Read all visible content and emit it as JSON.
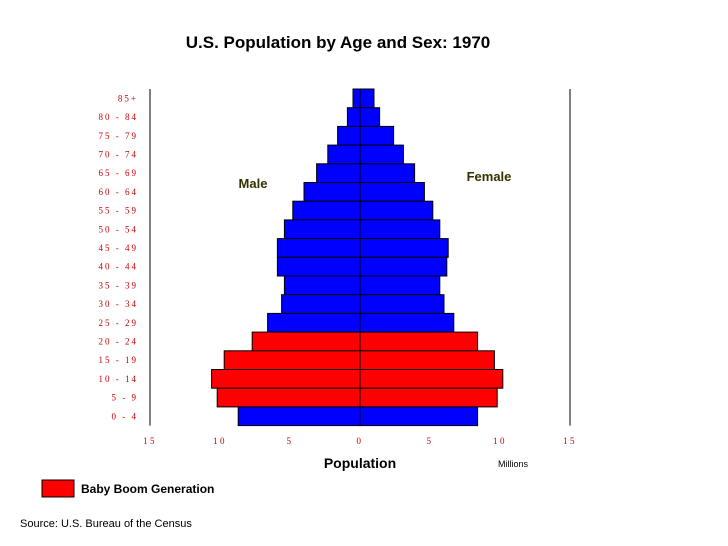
{
  "chart_data": {
    "type": "bar",
    "orientation": "horizontal",
    "title": "U.S. Population by Age and Sex: 1970",
    "xlabel": "Population",
    "units": "Millions",
    "xlim": [
      -15,
      15
    ],
    "x_ticks": [
      15,
      10,
      5,
      0,
      5,
      10,
      15
    ],
    "grid": false,
    "categories": [
      "0 - 4",
      "5 - 9",
      "10 - 14",
      "15 - 19",
      "20 - 24",
      "25 - 29",
      "30 - 34",
      "35 - 39",
      "40 - 44",
      "45 - 49",
      "50 - 54",
      "55 - 59",
      "60 - 64",
      "65 - 69",
      "70 - 74",
      "75 - 79",
      "80 - 84",
      "85+"
    ],
    "series": [
      {
        "name": "Male",
        "values": [
          8.7,
          10.2,
          10.6,
          9.7,
          7.7,
          6.6,
          5.6,
          5.4,
          5.9,
          5.9,
          5.4,
          4.8,
          4.0,
          3.1,
          2.3,
          1.6,
          0.9,
          0.5
        ]
      },
      {
        "name": "Female",
        "values": [
          8.4,
          9.8,
          10.2,
          9.6,
          8.4,
          6.7,
          6.0,
          5.7,
          6.2,
          6.3,
          5.7,
          5.2,
          4.6,
          3.9,
          3.1,
          2.4,
          1.4,
          1.0
        ]
      }
    ],
    "highlight": {
      "label": "Baby Boom Generation",
      "categories": [
        "5 - 9",
        "10 - 14",
        "15 - 19",
        "20 - 24"
      ],
      "color": "#ff0000"
    },
    "base_color": "#0000ff",
    "source": "Source: U.S. Bureau of the Census"
  }
}
